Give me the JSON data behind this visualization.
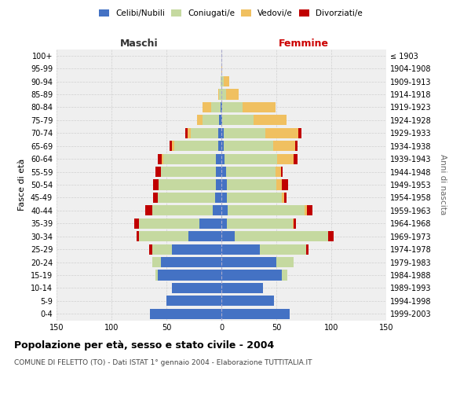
{
  "age_groups": [
    "0-4",
    "5-9",
    "10-14",
    "15-19",
    "20-24",
    "25-29",
    "30-34",
    "35-39",
    "40-44",
    "45-49",
    "50-54",
    "55-59",
    "60-64",
    "65-69",
    "70-74",
    "75-79",
    "80-84",
    "85-89",
    "90-94",
    "95-99",
    "100+"
  ],
  "birth_years": [
    "1999-2003",
    "1994-1998",
    "1989-1993",
    "1984-1988",
    "1979-1983",
    "1974-1978",
    "1969-1973",
    "1964-1968",
    "1959-1963",
    "1954-1958",
    "1949-1953",
    "1944-1948",
    "1939-1943",
    "1934-1938",
    "1929-1933",
    "1924-1928",
    "1919-1923",
    "1914-1918",
    "1909-1913",
    "1904-1908",
    "≤ 1903"
  ],
  "males": {
    "celibi": [
      65,
      50,
      45,
      58,
      55,
      45,
      30,
      20,
      8,
      6,
      5,
      5,
      5,
      3,
      3,
      2,
      1,
      0,
      0,
      0,
      0
    ],
    "coniugati": [
      0,
      0,
      0,
      2,
      8,
      18,
      45,
      55,
      55,
      52,
      52,
      50,
      48,
      40,
      25,
      15,
      8,
      2,
      1,
      0,
      0
    ],
    "vedovi": [
      0,
      0,
      0,
      0,
      0,
      0,
      0,
      0,
      0,
      0,
      0,
      0,
      1,
      2,
      3,
      5,
      8,
      1,
      0,
      0,
      0
    ],
    "divorziati": [
      0,
      0,
      0,
      0,
      0,
      3,
      2,
      4,
      6,
      4,
      5,
      5,
      4,
      2,
      2,
      0,
      0,
      0,
      0,
      0,
      0
    ]
  },
  "females": {
    "nubili": [
      62,
      48,
      38,
      55,
      50,
      35,
      12,
      5,
      6,
      5,
      5,
      4,
      3,
      2,
      2,
      1,
      1,
      0,
      0,
      0,
      0
    ],
    "coniugate": [
      0,
      0,
      0,
      5,
      16,
      42,
      85,
      60,
      70,
      50,
      45,
      45,
      48,
      45,
      38,
      28,
      18,
      4,
      2,
      0,
      0
    ],
    "vedove": [
      0,
      0,
      0,
      0,
      0,
      0,
      0,
      1,
      2,
      2,
      5,
      5,
      15,
      20,
      30,
      30,
      30,
      12,
      5,
      1,
      0
    ],
    "divorziate": [
      0,
      0,
      0,
      0,
      0,
      2,
      5,
      2,
      5,
      2,
      6,
      2,
      3,
      2,
      3,
      0,
      0,
      0,
      0,
      0,
      0
    ]
  },
  "colors": {
    "celibi": "#4472C4",
    "coniugati": "#c5d9a0",
    "vedovi": "#f0c060",
    "divorziati": "#c00000"
  },
  "title": "Popolazione per età, sesso e stato civile - 2004",
  "subtitle": "COMUNE DI FELETTO (TO) - Dati ISTAT 1° gennaio 2004 - Elaborazione TUTTITALIA.IT",
  "label_maschi": "Maschi",
  "label_femmine": "Femmine",
  "ylabel_left": "Fasce di età",
  "ylabel_right": "Anni di nascita",
  "xlim": 150,
  "bg_color": "#ffffff",
  "plot_bg": "#efefef",
  "grid_color": "#d0d0d0"
}
